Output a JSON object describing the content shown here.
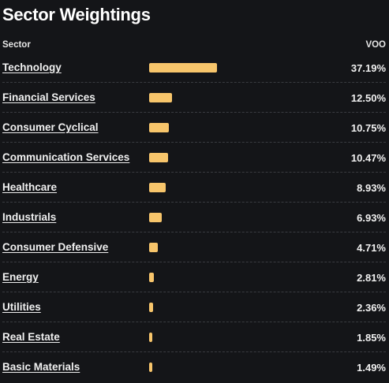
{
  "title": "Sector Weightings",
  "header": {
    "sector_label": "Sector",
    "fund_label": "VOO"
  },
  "bar_color": "#f7c56b",
  "sectors": [
    {
      "name": "Technology",
      "value": "37.19%",
      "pct": 37.19
    },
    {
      "name": "Financial Services",
      "value": "12.50%",
      "pct": 12.5
    },
    {
      "name": "Consumer Cyclical",
      "value": "10.75%",
      "pct": 10.75
    },
    {
      "name": "Communication Services",
      "value": "10.47%",
      "pct": 10.47
    },
    {
      "name": "Healthcare",
      "value": "8.93%",
      "pct": 8.93
    },
    {
      "name": "Industrials",
      "value": "6.93%",
      "pct": 6.93
    },
    {
      "name": "Consumer Defensive",
      "value": "4.71%",
      "pct": 4.71
    },
    {
      "name": "Energy",
      "value": "2.81%",
      "pct": 2.81
    },
    {
      "name": "Utilities",
      "value": "2.36%",
      "pct": 2.36
    },
    {
      "name": "Real Estate",
      "value": "1.85%",
      "pct": 1.85
    },
    {
      "name": "Basic Materials",
      "value": "1.49%",
      "pct": 1.49
    }
  ]
}
